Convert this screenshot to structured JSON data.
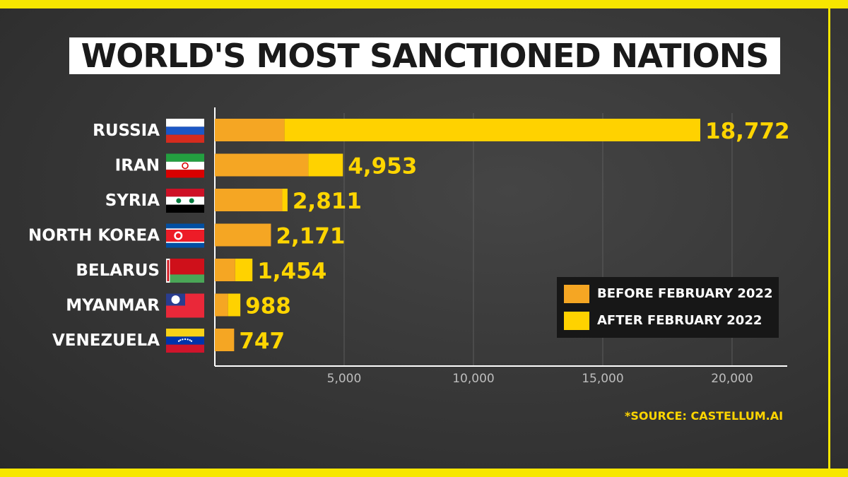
{
  "title": "WORLD'S MOST SANCTIONED NATIONS",
  "source": "*SOURCE: CASTELLUM.AI",
  "colors": {
    "before": "#f5a623",
    "after": "#ffd200",
    "value_text": "#ffd500",
    "frame": "#f7e600"
  },
  "chart_data": {
    "type": "bar",
    "orientation": "horizontal",
    "stacked": true,
    "title": "WORLD'S MOST SANCTIONED NATIONS",
    "categories": [
      "RUSSIA",
      "IRAN",
      "SYRIA",
      "NORTH KOREA",
      "BELARUS",
      "MYANMAR",
      "VENEZUELA"
    ],
    "flags": [
      "russia-flag",
      "iran-flag",
      "syria-flag",
      "north-korea-flag",
      "belarus-flag",
      "myanmar-flag",
      "venezuela-flag"
    ],
    "series": [
      {
        "name": "BEFORE FEBRUARY 2022",
        "values": [
          2695,
          3616,
          2608,
          2171,
          788,
          510,
          747
        ]
      },
      {
        "name": "AFTER FEBRUARY 2022",
        "values": [
          16077,
          1337,
          203,
          0,
          666,
          478,
          0
        ]
      }
    ],
    "totals": [
      18772,
      4953,
      2811,
      2171,
      1454,
      988,
      747
    ],
    "total_labels": [
      "18,772",
      "4,953",
      "2,811",
      "2,171",
      "1,454",
      "988",
      "747"
    ],
    "xticks": [
      5000,
      10000,
      15000,
      20000
    ],
    "xtick_labels": [
      "5,000",
      "10,000",
      "15,000",
      "20,000"
    ],
    "xlim": [
      0,
      22000
    ],
    "grid": true,
    "legend_position": "bottom-right"
  }
}
